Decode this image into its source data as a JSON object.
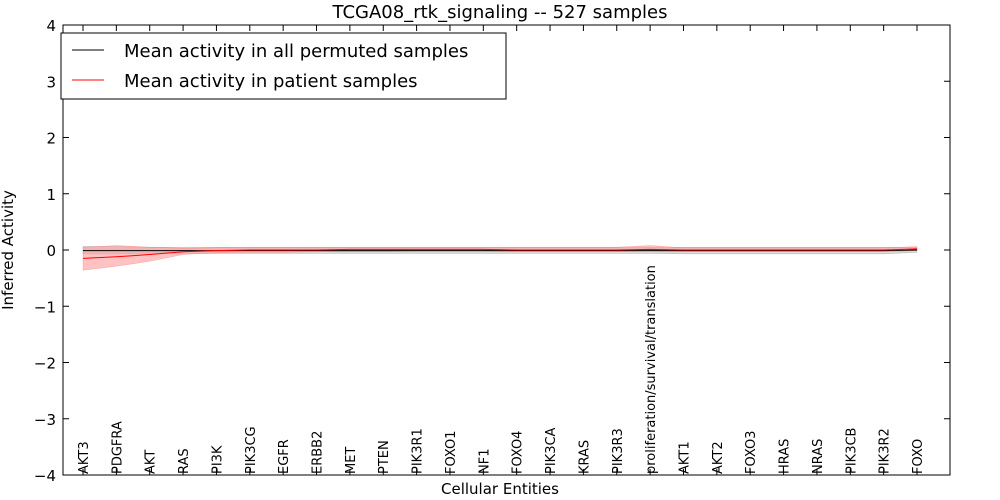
{
  "chart_data": {
    "type": "line",
    "title": "TCGA08_rtk_signaling -- 527 samples",
    "xlabel": "Cellular Entities",
    "ylabel": "Inferred Activity",
    "ylim": [
      -4,
      4
    ],
    "yticks": [
      4,
      3,
      2,
      1,
      0,
      -1,
      -2,
      -3,
      -4
    ],
    "ytick_labels": [
      "4",
      "3",
      "2",
      "1",
      "0",
      "−1",
      "−2",
      "−3",
      "−4"
    ],
    "categories": [
      "AKT3",
      "PDGFRA",
      "AKT",
      "RAS",
      "PI3K",
      "PIK3CG",
      "EGFR",
      "ERBB2",
      "MET",
      "PTEN",
      "PIK3R1",
      "FOXO1",
      "NF1",
      "FOXO4",
      "PIK3CA",
      "KRAS",
      "PIK3R3",
      "proliferation/survival/translation",
      "AKT1",
      "AKT2",
      "FOXO3",
      "HRAS",
      "NRAS",
      "PIK3CB",
      "PIK3R2",
      "FOXO"
    ],
    "legend_position": "top-left",
    "series": [
      {
        "name": "Mean activity in all permuted samples",
        "color": "#000000",
        "band_color": "#b0b0b0",
        "values": [
          -0.01,
          -0.01,
          -0.01,
          -0.01,
          -0.01,
          -0.01,
          -0.01,
          -0.01,
          -0.01,
          -0.01,
          -0.01,
          -0.01,
          -0.01,
          -0.01,
          -0.01,
          -0.01,
          -0.01,
          -0.01,
          -0.01,
          -0.01,
          -0.01,
          -0.01,
          -0.01,
          -0.01,
          -0.01,
          0.0
        ],
        "lower": [
          -0.07,
          -0.07,
          -0.06,
          -0.06,
          -0.06,
          -0.06,
          -0.06,
          -0.06,
          -0.06,
          -0.06,
          -0.06,
          -0.06,
          -0.06,
          -0.06,
          -0.06,
          -0.06,
          -0.06,
          -0.06,
          -0.07,
          -0.07,
          -0.07,
          -0.07,
          -0.07,
          -0.07,
          -0.07,
          -0.04
        ],
        "upper": [
          0.06,
          0.06,
          0.05,
          0.05,
          0.05,
          0.05,
          0.05,
          0.05,
          0.05,
          0.05,
          0.05,
          0.05,
          0.05,
          0.05,
          0.05,
          0.05,
          0.05,
          0.05,
          0.05,
          0.05,
          0.05,
          0.05,
          0.05,
          0.05,
          0.05,
          0.05
        ]
      },
      {
        "name": "Mean activity in patient samples",
        "color": "#ff0000",
        "band_color": "#ff9a9a",
        "values": [
          -0.15,
          -0.12,
          -0.08,
          -0.03,
          -0.01,
          0.0,
          0.0,
          0.0,
          0.01,
          0.01,
          0.01,
          0.01,
          0.01,
          0.0,
          0.0,
          0.0,
          0.0,
          0.01,
          0.0,
          0.0,
          0.0,
          0.0,
          0.0,
          0.0,
          0.0,
          0.02
        ],
        "lower": [
          -0.36,
          -0.29,
          -0.2,
          -0.08,
          -0.05,
          -0.04,
          -0.04,
          -0.03,
          -0.03,
          -0.03,
          -0.02,
          -0.02,
          -0.02,
          -0.03,
          -0.03,
          -0.03,
          -0.03,
          -0.02,
          -0.03,
          -0.03,
          -0.03,
          -0.03,
          -0.03,
          -0.03,
          -0.03,
          -0.01
        ],
        "upper": [
          0.05,
          0.08,
          0.05,
          0.03,
          0.04,
          0.05,
          0.05,
          0.05,
          0.05,
          0.05,
          0.05,
          0.05,
          0.05,
          0.05,
          0.05,
          0.05,
          0.05,
          0.08,
          0.04,
          0.04,
          0.04,
          0.04,
          0.04,
          0.04,
          0.04,
          0.06
        ]
      }
    ]
  }
}
